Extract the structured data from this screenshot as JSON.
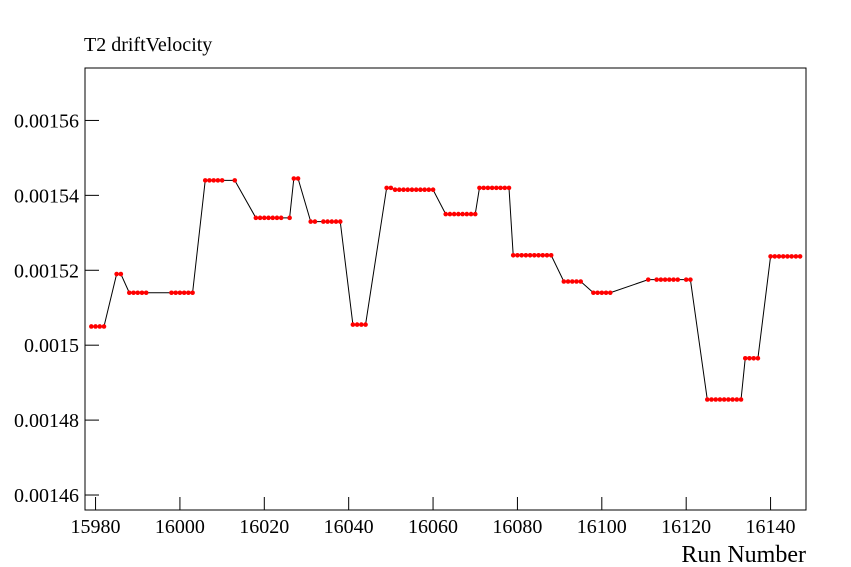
{
  "chart_data": {
    "type": "line",
    "title": "T2 driftVelocity",
    "x_label": "Run Number",
    "series": [
      {
        "name": null,
        "color": "#ff0000",
        "line_color": "#000000",
        "x": [
          15979,
          15980,
          15981,
          15982,
          15985,
          15986,
          15988,
          15989,
          15990,
          15991,
          15992,
          15998,
          15999,
          16000,
          16001,
          16002,
          16003,
          16006,
          16007,
          16008,
          16009,
          16010,
          16013,
          16018,
          16019,
          16020,
          16021,
          16022,
          16023,
          16024,
          16026,
          16027,
          16028,
          16031,
          16032,
          16034,
          16035,
          16036,
          16037,
          16038,
          16041,
          16042,
          16043,
          16044,
          16049,
          16050,
          16051,
          16052,
          16053,
          16054,
          16055,
          16056,
          16057,
          16058,
          16059,
          16060,
          16063,
          16064,
          16065,
          16066,
          16067,
          16068,
          16069,
          16070,
          16071,
          16072,
          16073,
          16074,
          16075,
          16076,
          16077,
          16078,
          16079,
          16080,
          16081,
          16082,
          16083,
          16084,
          16085,
          16086,
          16087,
          16088,
          16091,
          16092,
          16093,
          16094,
          16095,
          16098,
          16099,
          16100,
          16101,
          16102,
          16111,
          16113,
          16114,
          16115,
          16116,
          16117,
          16118,
          16120,
          16121,
          16125,
          16126,
          16127,
          16128,
          16129,
          16130,
          16131,
          16132,
          16133,
          16134,
          16135,
          16136,
          16137,
          16140,
          16141,
          16142,
          16143,
          16144,
          16145,
          16146,
          16147
        ],
        "values": [
          0.001505,
          0.001505,
          0.001505,
          0.001505,
          0.001519,
          0.001519,
          0.001514,
          0.001514,
          0.001514,
          0.001514,
          0.001514,
          0.001514,
          0.001514,
          0.001514,
          0.001514,
          0.001514,
          0.001514,
          0.001544,
          0.001544,
          0.001544,
          0.001544,
          0.001544,
          0.001544,
          0.001534,
          0.001534,
          0.001534,
          0.001534,
          0.001534,
          0.001534,
          0.001534,
          0.001534,
          0.0015445,
          0.0015445,
          0.001533,
          0.001533,
          0.001533,
          0.001533,
          0.001533,
          0.001533,
          0.001533,
          0.0015055,
          0.0015055,
          0.0015055,
          0.0015055,
          0.001542,
          0.001542,
          0.0015415,
          0.0015415,
          0.0015415,
          0.0015415,
          0.0015415,
          0.0015415,
          0.0015415,
          0.0015415,
          0.0015415,
          0.0015415,
          0.001535,
          0.001535,
          0.001535,
          0.001535,
          0.001535,
          0.001535,
          0.001535,
          0.001535,
          0.001542,
          0.001542,
          0.001542,
          0.001542,
          0.001542,
          0.001542,
          0.001542,
          0.001542,
          0.001524,
          0.001524,
          0.001524,
          0.001524,
          0.001524,
          0.001524,
          0.001524,
          0.001524,
          0.001524,
          0.001524,
          0.001517,
          0.001517,
          0.001517,
          0.001517,
          0.001517,
          0.001514,
          0.001514,
          0.001514,
          0.001514,
          0.001514,
          0.0015175,
          0.0015175,
          0.0015175,
          0.0015175,
          0.0015175,
          0.0015175,
          0.0015175,
          0.0015175,
          0.0015175,
          0.0014855,
          0.0014855,
          0.0014855,
          0.0014855,
          0.0014855,
          0.0014855,
          0.0014855,
          0.0014855,
          0.0014855,
          0.0014965,
          0.0014965,
          0.0014965,
          0.0014965,
          0.0015237,
          0.0015237,
          0.0015237,
          0.0015237,
          0.0015237,
          0.0015237,
          0.0015237,
          0.0015237
        ]
      }
    ],
    "xlim": [
      15977.5,
      16148.4
    ],
    "xticks": [
      15980,
      16000,
      16020,
      16040,
      16060,
      16080,
      16100,
      16120,
      16140
    ],
    "ylim": [
      0.001456,
      0.001574
    ],
    "yticks": [
      0.00146,
      0.00148,
      0.0015,
      0.00152,
      0.00154,
      0.00156
    ]
  }
}
